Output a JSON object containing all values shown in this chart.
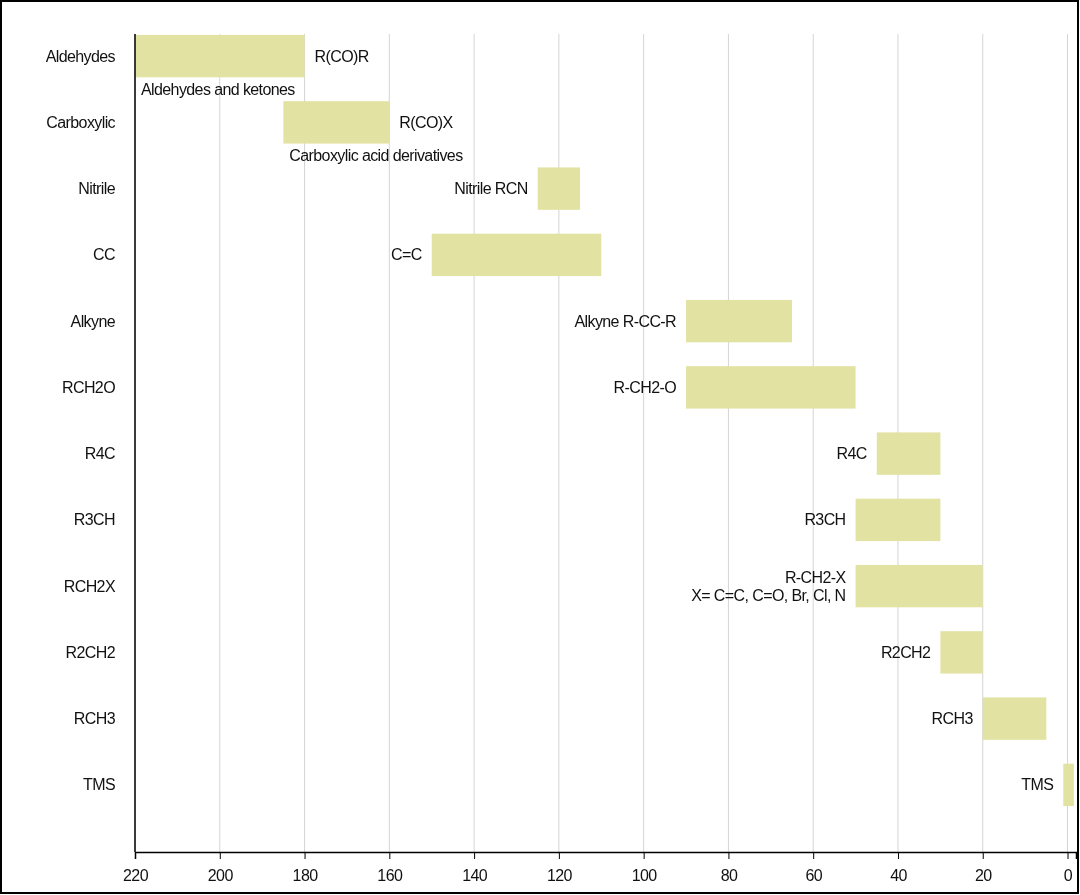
{
  "chart_data": {
    "type": "bar",
    "orientation": "horizontal",
    "color": "#e2e3a3",
    "categories": [
      "Aldehydes",
      "Carboxylic",
      "Nitrile",
      "CC",
      "Alkyne",
      "RCH2O",
      "R4C",
      "R3CH",
      "RCH2X",
      "R2CH2",
      "RCH3",
      "TMS"
    ],
    "base": [
      180,
      160,
      115,
      110,
      65,
      50,
      30,
      30,
      20,
      20,
      5,
      -1.5
    ],
    "values": [
      40,
      25,
      10,
      40,
      25,
      40,
      15,
      20,
      30,
      10,
      15,
      2.5
    ],
    "xlim": [
      220,
      -2
    ],
    "xticks": [
      220,
      200,
      180,
      160,
      140,
      120,
      100,
      80,
      60,
      40,
      20,
      0
    ],
    "grid": "x",
    "annotations": [
      {
        "text": "R(CO)R",
        "x": 180,
        "y": "Aldehydes"
      },
      {
        "text": "Aldehydes and ketones",
        "x": 220,
        "y": "Aldehydes"
      },
      {
        "text": "R(CO)X",
        "x": 160,
        "y": "Carboxylic"
      },
      {
        "text": "Carboxylic acid derivatives",
        "x": 185,
        "y": "Carboxylic"
      },
      {
        "text": "Nitrile RCN",
        "x": 125,
        "y": "Nitrile"
      },
      {
        "text": "C=C",
        "x": 150,
        "y": "CC"
      },
      {
        "text": "Alkyne R-CC-R",
        "x": 90,
        "y": "Alkyne"
      },
      {
        "text": "R-CH2-O",
        "x": 90,
        "y": "RCH2O"
      },
      {
        "text": "R4C",
        "x": 45,
        "y": "R4C"
      },
      {
        "text": "R3CH",
        "x": 50,
        "y": "R3CH"
      },
      {
        "text": "R-CH2-X",
        "x": 50,
        "y": "RCH2X"
      },
      {
        "text": "X= C=C, C=O, Br, Cl, N",
        "x": 50,
        "y": "RCH2X"
      },
      {
        "text": "R2CH2",
        "x": 30,
        "y": "R2CH2"
      },
      {
        "text": "RCH3",
        "x": 20,
        "y": "RCH3"
      },
      {
        "text": "TMS",
        "x": 1,
        "y": "TMS"
      }
    ]
  }
}
